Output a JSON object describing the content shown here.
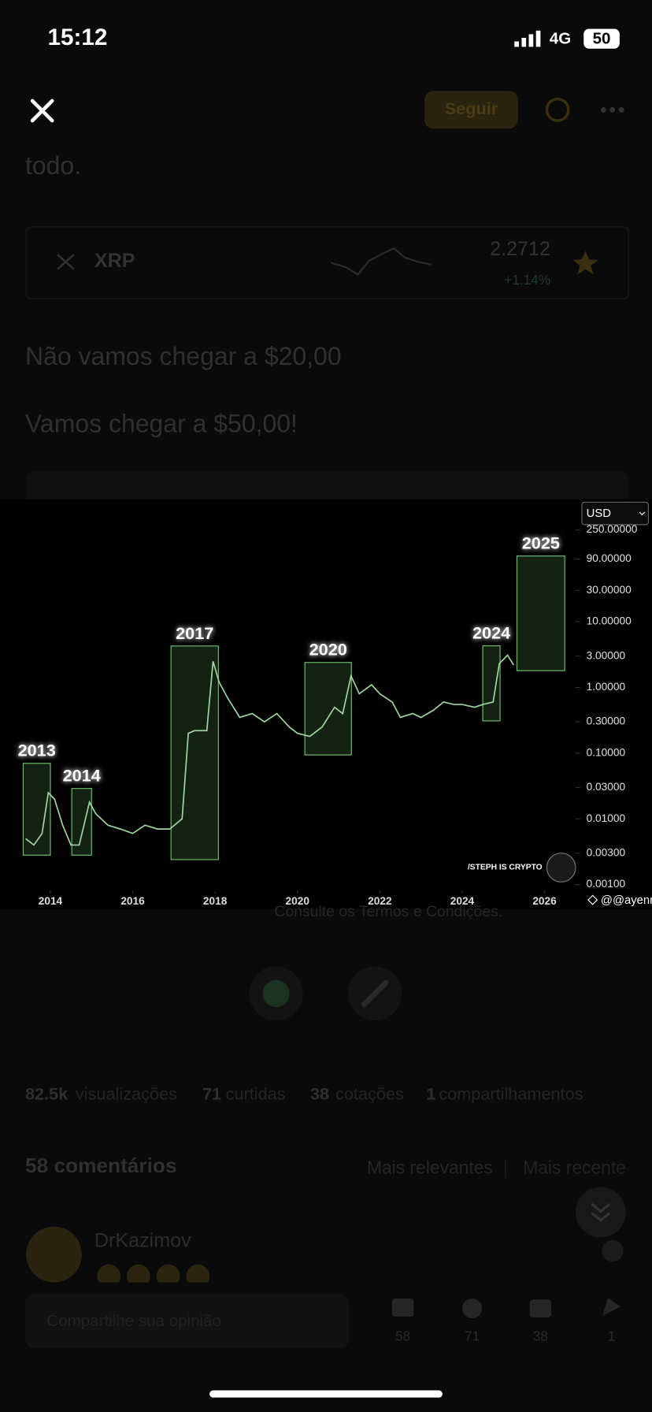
{
  "status": {
    "time": "15:12",
    "network": "4G",
    "battery": "50"
  },
  "header": {
    "follow": "Seguir"
  },
  "post": {
    "lead": "todo.",
    "ticker": {
      "symbol": "XRP",
      "price": "2.2712",
      "change": "+1.14%"
    },
    "lines": [
      "Não vamos chegar a $20,00",
      "Vamos chegar a $50,00!"
    ],
    "terms": "Consulte os Termos e Condições."
  },
  "chart_data": {
    "type": "line",
    "log_scale": true,
    "color": "#9fd39f",
    "box_color": "#6fbf6f",
    "currency": "USD",
    "watermark": "/STEPH IS CRYPTO",
    "credit": "@@ayenn",
    "xlim": [
      2013.0,
      2026.6
    ],
    "ylim": [
      0.0008,
      300
    ],
    "xticks": [
      2014,
      2016,
      2018,
      2020,
      2022,
      2024,
      2026
    ],
    "yticks": [
      {
        "value": 0.001,
        "label": "0.00100"
      },
      {
        "value": 0.003,
        "label": "0.00300"
      },
      {
        "value": 0.01,
        "label": "0.01000"
      },
      {
        "value": 0.03,
        "label": "0.03000"
      },
      {
        "value": 0.1,
        "label": "0.10000"
      },
      {
        "value": 0.3,
        "label": "0.30000"
      },
      {
        "value": 1,
        "label": "1.00000"
      },
      {
        "value": 3,
        "label": "3.00000"
      },
      {
        "value": 10,
        "label": "10.00000"
      },
      {
        "value": 30,
        "label": "30.00000"
      },
      {
        "value": 90,
        "label": "90.00000"
      },
      {
        "value": 250,
        "label": "250.00000"
      }
    ],
    "x": [
      2013.4,
      2013.6,
      2013.8,
      2013.95,
      2014.1,
      2014.3,
      2014.5,
      2014.7,
      2014.95,
      2015.1,
      2015.4,
      2015.7,
      2016.0,
      2016.3,
      2016.6,
      2016.9,
      2017.2,
      2017.35,
      2017.5,
      2017.8,
      2017.95,
      2018.1,
      2018.3,
      2018.6,
      2018.9,
      2019.2,
      2019.5,
      2019.8,
      2020.0,
      2020.3,
      2020.6,
      2020.9,
      2021.1,
      2021.3,
      2021.5,
      2021.8,
      2022.0,
      2022.3,
      2022.5,
      2022.8,
      2023.0,
      2023.3,
      2023.55,
      2023.8,
      2024.0,
      2024.3,
      2024.5,
      2024.75,
      2024.9,
      2025.1,
      2025.25
    ],
    "values": [
      0.005,
      0.004,
      0.006,
      0.025,
      0.02,
      0.008,
      0.004,
      0.004,
      0.018,
      0.012,
      0.008,
      0.007,
      0.006,
      0.008,
      0.007,
      0.007,
      0.01,
      0.2,
      0.22,
      0.22,
      2.5,
      1.2,
      0.7,
      0.35,
      0.4,
      0.3,
      0.4,
      0.25,
      0.2,
      0.18,
      0.25,
      0.5,
      0.4,
      1.5,
      0.8,
      1.1,
      0.8,
      0.6,
      0.35,
      0.4,
      0.35,
      0.45,
      0.6,
      0.55,
      0.55,
      0.5,
      0.55,
      0.6,
      2.3,
      3.1,
      2.2
    ],
    "boxes": [
      {
        "label": "2013",
        "x": [
          2013.34,
          2014.0
        ],
        "y": [
          0.0028,
          0.07
        ]
      },
      {
        "label": "2014",
        "x": [
          2014.52,
          2015.0
        ],
        "y": [
          0.0028,
          0.029
        ]
      },
      {
        "label": "2017",
        "x": [
          2016.93,
          2018.08
        ],
        "y": [
          0.0024,
          4.27
        ]
      },
      {
        "label": "2020",
        "x": [
          2020.18,
          2021.31
        ],
        "y": [
          0.094,
          2.4
        ]
      },
      {
        "label": "2024",
        "x": [
          2024.5,
          2024.92
        ],
        "y": [
          0.31,
          4.3
        ]
      },
      {
        "label": "2025",
        "x": [
          2025.33,
          2026.49
        ],
        "y": [
          1.8,
          100
        ]
      }
    ]
  },
  "stats": [
    {
      "count": "82.5k",
      "label": "visualizações"
    },
    {
      "count": "71",
      "label": "curtidas"
    },
    {
      "count": "38",
      "label": "cotações"
    },
    {
      "count": "1",
      "label": "compartilhamentos"
    }
  ],
  "comments": {
    "title": "58 comentários",
    "sort": [
      "Mais relevantes",
      "Mais recente"
    ],
    "first": {
      "author": "DrKazimov"
    }
  },
  "footer": {
    "placeholder": "Compartilhe sua opinião",
    "counts": [
      "58",
      "71",
      "38",
      "1"
    ]
  }
}
